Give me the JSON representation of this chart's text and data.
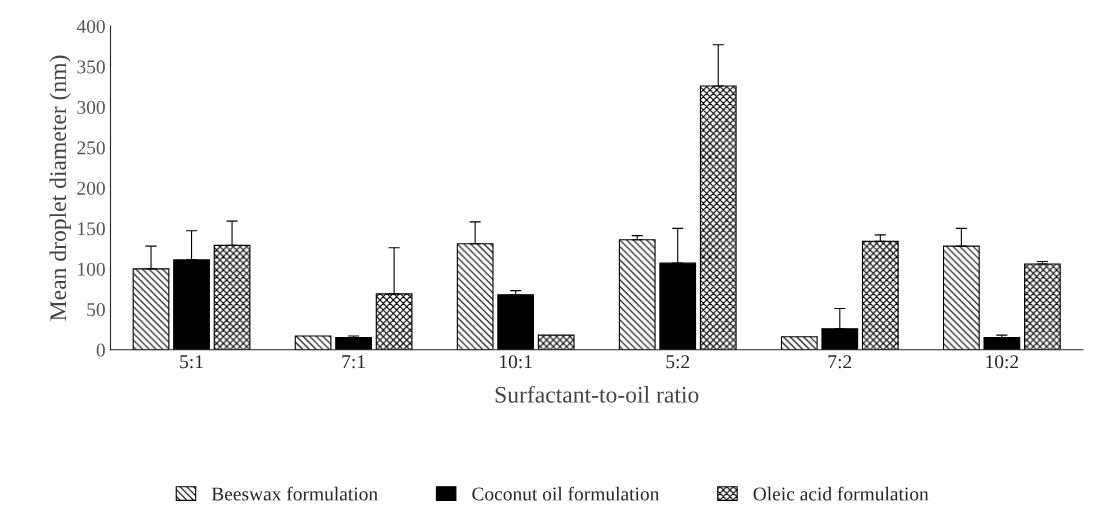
{
  "chart_data": {
    "type": "bar",
    "xlabel": "Surfactant-to-oil ratio",
    "ylabel": "Mean droplet diameter (nm)",
    "categories": [
      "5:1",
      "7:1",
      "10:1",
      "5:2",
      "7:2",
      "10:2"
    ],
    "series": [
      {
        "name": "Beeswax formulation",
        "color": "#000000",
        "values": [
          100,
          17,
          131,
          136,
          16,
          128
        ],
        "errors": [
          [
            100,
            128
          ],
          null,
          [
            131,
            158
          ],
          [
            136,
            141
          ],
          null,
          [
            128,
            150
          ]
        ]
      },
      {
        "name": "Coconut oil formulation",
        "color": "#000000",
        "values": [
          111,
          15,
          68,
          107,
          26,
          15
        ],
        "errors": [
          [
            111,
            147
          ],
          [
            15,
            17
          ],
          [
            68,
            73
          ],
          [
            107,
            150
          ],
          [
            26,
            51
          ],
          [
            15,
            18
          ]
        ]
      },
      {
        "name": "Oleic acid formulation",
        "color": "#000000",
        "values": [
          129,
          69,
          18,
          326,
          134,
          106
        ],
        "errors": [
          [
            129,
            159
          ],
          [
            69,
            126
          ],
          null,
          [
            326,
            377
          ],
          [
            134,
            142
          ],
          [
            106,
            109
          ]
        ]
      }
    ],
    "ylim": [
      0,
      400
    ],
    "yticks": [
      0,
      50,
      100,
      150,
      200,
      250,
      300,
      350,
      400
    ],
    "grid": false,
    "legend": "bottom"
  }
}
